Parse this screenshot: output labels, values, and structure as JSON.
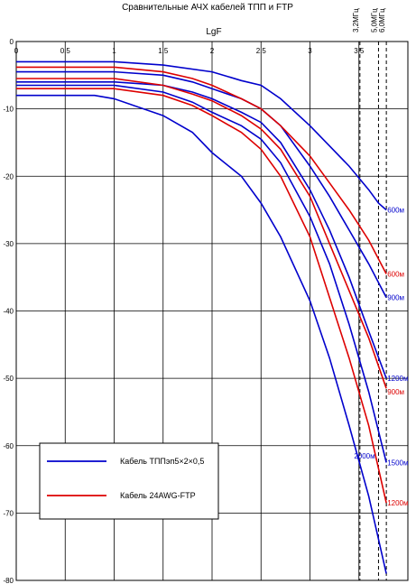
{
  "chart_data": {
    "type": "line",
    "title": "Сравнительные АЧХ кабелей ТПП и FTP",
    "xlabel": "LgF",
    "ylabel": "",
    "xlim": [
      0,
      4
    ],
    "ylim": [
      -80,
      0
    ],
    "x_ticks": [
      "0",
      "0.5",
      "1",
      "1.5",
      "2",
      "2.5",
      "3",
      "3.5"
    ],
    "y_ticks": [
      "0",
      "-10",
      "-20",
      "-30",
      "-40",
      "-50",
      "-60",
      "-70",
      "-80"
    ],
    "grid": true,
    "legend_position": "bottom-left",
    "legend": [
      {
        "label": "Кабель ТППэп5×2×0,5",
        "color": "#0000cc"
      },
      {
        "label": "Кабель 24AWG-FTP",
        "color": "#dd0000"
      }
    ],
    "markers": [
      {
        "x": 3.51,
        "label": "3,2МГц"
      },
      {
        "x": 3.7,
        "label": "5,0МГц"
      },
      {
        "x": 3.78,
        "label": "6,0МГц"
      }
    ],
    "series": [
      {
        "cable": "ТПП",
        "color": "#0000cc",
        "label": "600м",
        "label_x": 3.79,
        "label_y": -25,
        "x": [
          0,
          0.8,
          1.0,
          1.5,
          2.0,
          2.3,
          2.5,
          2.7,
          3.0,
          3.2,
          3.4,
          3.6,
          3.7,
          3.78
        ],
        "y": [
          -3,
          -3,
          -3,
          -3.5,
          -4.5,
          -5.8,
          -6.5,
          -8.5,
          -12.5,
          -15.5,
          -18.5,
          -22,
          -24,
          -25
        ]
      },
      {
        "cable": "ТПП",
        "color": "#0000cc",
        "label": "900м",
        "label_x": 3.79,
        "label_y": -38,
        "x": [
          0,
          0.8,
          1.0,
          1.5,
          1.8,
          2.0,
          2.3,
          2.5,
          2.7,
          3.0,
          3.2,
          3.4,
          3.6,
          3.78
        ],
        "y": [
          -4.5,
          -4.5,
          -4.5,
          -5,
          -6,
          -7,
          -8.5,
          -10,
          -12.5,
          -18.5,
          -23,
          -28,
          -33,
          -38
        ]
      },
      {
        "cable": "ТПП",
        "color": "#0000cc",
        "label": "1200м",
        "label_x": 3.79,
        "label_y": -50,
        "x": [
          0,
          0.8,
          1.0,
          1.5,
          1.8,
          2.0,
          2.3,
          2.5,
          2.7,
          3.0,
          3.2,
          3.4,
          3.6,
          3.78
        ],
        "y": [
          -6,
          -6,
          -6,
          -6.5,
          -7.5,
          -8.5,
          -10.5,
          -12,
          -15,
          -22,
          -28,
          -35,
          -43,
          -50
        ]
      },
      {
        "cable": "ТПП",
        "color": "#0000cc",
        "label": "1500м",
        "label_x": 3.79,
        "label_y": -62.5,
        "x": [
          0,
          0.8,
          1.0,
          1.5,
          1.8,
          2.0,
          2.3,
          2.5,
          2.7,
          3.0,
          3.2,
          3.4,
          3.6,
          3.78
        ],
        "y": [
          -6.5,
          -6.5,
          -6.5,
          -7.5,
          -9,
          -10.5,
          -12.5,
          -14.5,
          -18,
          -26,
          -33,
          -42,
          -52,
          -62.5
        ]
      },
      {
        "cable": "ТПП",
        "color": "#0000cc",
        "label": "2000м",
        "label_x": 3.45,
        "label_y": -61.5,
        "x": [
          0,
          0.8,
          1.0,
          1.5,
          1.8,
          2.0,
          2.3,
          2.5,
          2.7,
          3.0,
          3.2,
          3.4,
          3.6,
          3.78
        ],
        "y": [
          -8,
          -8,
          -8.5,
          -11,
          -13.5,
          -16.5,
          -20,
          -24,
          -29,
          -38.5,
          -47,
          -57,
          -67.5,
          -79
        ]
      },
      {
        "cable": "FTP",
        "color": "#dd0000",
        "label": "600м",
        "label_x": 3.79,
        "label_y": -34.5,
        "x": [
          0,
          0.8,
          1.0,
          1.5,
          1.8,
          2.0,
          2.3,
          2.5,
          2.7,
          3.0,
          3.2,
          3.4,
          3.6,
          3.78
        ],
        "y": [
          -3.8,
          -3.8,
          -3.8,
          -4.5,
          -5.5,
          -6.5,
          -8.5,
          -10,
          -12.5,
          -17,
          -21,
          -25,
          -29.5,
          -34.5
        ]
      },
      {
        "cable": "FTP",
        "color": "#dd0000",
        "label": "900м",
        "label_x": 3.79,
        "label_y": -52,
        "x": [
          0,
          0.8,
          1.0,
          1.5,
          1.8,
          2.0,
          2.3,
          2.5,
          2.7,
          3.0,
          3.2,
          3.4,
          3.6,
          3.78
        ],
        "y": [
          -5.5,
          -5.5,
          -5.5,
          -6.5,
          -7.8,
          -8.8,
          -11,
          -13,
          -16,
          -23,
          -30,
          -37,
          -44,
          -51.5
        ]
      },
      {
        "cable": "FTP",
        "color": "#dd0000",
        "label": "1200м",
        "label_x": 3.79,
        "label_y": -68.5,
        "x": [
          0,
          0.8,
          1.0,
          1.5,
          1.8,
          2.0,
          2.3,
          2.5,
          2.7,
          3.0,
          3.2,
          3.4,
          3.6,
          3.78
        ],
        "y": [
          -7,
          -7,
          -7,
          -8,
          -9.5,
          -11,
          -13.5,
          -16,
          -20,
          -29,
          -38,
          -47,
          -57,
          -68.5
        ]
      }
    ]
  }
}
